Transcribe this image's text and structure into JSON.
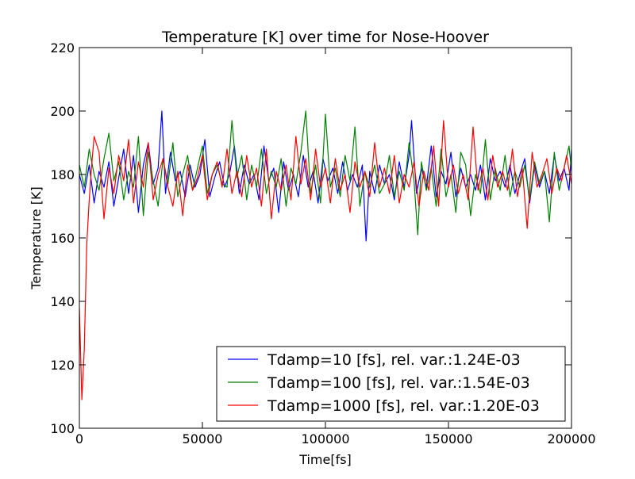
{
  "chart_data": {
    "type": "line",
    "title": "Temperature [K] over time for Nose-Hoover",
    "xlabel": "Time[fs]",
    "ylabel": "Temperature [K]",
    "xlim": [
      0,
      200000
    ],
    "ylim": [
      100,
      220
    ],
    "xticks": [
      0,
      50000,
      100000,
      150000,
      200000
    ],
    "yticks": [
      100,
      120,
      140,
      160,
      180,
      200,
      220
    ],
    "grid": false,
    "legend_position": "lower-right",
    "series": [
      {
        "name": "Tdamp=10 [fs], rel. var.:1.24E-03",
        "color": "#0000ff",
        "x": [
          0,
          2000,
          4000,
          6000,
          8000,
          10000,
          12000,
          14000,
          16000,
          18000,
          20000,
          22000,
          24000,
          26000,
          28000,
          30000,
          32000,
          33500,
          35000,
          37000,
          39000,
          41000,
          43000,
          45000,
          47000,
          49000,
          51000,
          53000,
          55000,
          57000,
          59000,
          61000,
          63000,
          65000,
          67000,
          69000,
          71000,
          73000,
          75000,
          77000,
          79000,
          81000,
          83000,
          85000,
          87000,
          89000,
          91000,
          93000,
          95000,
          97000,
          99000,
          101000,
          103000,
          105000,
          107000,
          109000,
          111000,
          113000,
          115000,
          116500,
          118000,
          120000,
          122000,
          124000,
          126000,
          128000,
          130000,
          132000,
          134000,
          135000,
          137000,
          139000,
          141000,
          143000,
          145000,
          147000,
          149000,
          151000,
          153000,
          155000,
          157000,
          159000,
          161000,
          163000,
          165000,
          167000,
          169000,
          171000,
          173000,
          175000,
          177000,
          179000,
          181000,
          183000,
          185000,
          187000,
          189000,
          191000,
          193000,
          195000,
          197000,
          199000,
          200000
        ],
        "y": [
          180,
          174,
          183,
          171,
          181,
          176,
          184,
          170,
          179,
          188,
          174,
          186,
          168,
          183,
          190,
          177,
          182,
          200,
          174,
          187,
          178,
          181,
          173,
          183,
          176,
          180,
          191,
          173,
          179,
          184,
          176,
          180,
          189,
          174,
          183,
          177,
          180,
          172,
          189,
          178,
          182,
          168,
          184,
          175,
          180,
          173,
          186,
          176,
          181,
          171,
          185,
          178,
          182,
          174,
          184,
          175,
          180,
          176,
          183,
          159,
          181,
          174,
          183,
          177,
          180,
          172,
          184,
          176,
          186,
          197,
          174,
          182,
          176,
          189,
          173,
          181,
          177,
          187,
          173,
          182,
          176,
          180,
          175,
          183,
          172,
          185,
          178,
          181,
          176,
          183,
          174,
          180,
          185,
          171,
          183,
          176,
          181,
          174,
          186,
          178,
          182,
          175,
          188
        ]
      },
      {
        "name": "Tdamp=100 [fs], rel. var.:1.54E-03",
        "color": "#008000",
        "x": [
          0,
          2000,
          4000,
          6000,
          8000,
          10000,
          12000,
          14000,
          16000,
          18000,
          20000,
          22000,
          24000,
          26000,
          28000,
          30000,
          32000,
          34000,
          36000,
          38000,
          40000,
          42000,
          44000,
          46000,
          48000,
          50000,
          52000,
          54000,
          56000,
          58000,
          60000,
          62000,
          64000,
          66000,
          68000,
          70000,
          72000,
          74000,
          76000,
          78000,
          80000,
          82000,
          84000,
          86000,
          88000,
          90000,
          92000,
          94000,
          96000,
          98000,
          100000,
          102000,
          104000,
          106000,
          108000,
          110000,
          112000,
          114000,
          116000,
          118000,
          120000,
          122000,
          124000,
          126000,
          128000,
          130000,
          132000,
          134000,
          136000,
          137500,
          139000,
          141000,
          143000,
          145000,
          147000,
          149000,
          151000,
          153000,
          155000,
          157000,
          159000,
          161000,
          163000,
          165000,
          167000,
          169000,
          171000,
          173000,
          175000,
          177000,
          179000,
          181000,
          183000,
          185000,
          187000,
          189000,
          191000,
          193000,
          195000,
          197000,
          199000,
          200000
        ],
        "y": [
          183,
          176,
          188,
          180,
          175,
          185,
          193,
          178,
          184,
          172,
          181,
          176,
          192,
          167,
          187,
          178,
          170,
          185,
          177,
          190,
          173,
          180,
          186,
          175,
          182,
          189,
          174,
          180,
          183,
          177,
          176,
          197,
          179,
          186,
          172,
          183,
          176,
          188,
          174,
          181,
          176,
          185,
          170,
          182,
          177,
          187,
          200,
          174,
          183,
          171,
          199,
          176,
          182,
          173,
          186,
          178,
          195,
          170,
          181,
          176,
          183,
          174,
          177,
          186,
          173,
          181,
          175,
          190,
          178,
          161,
          184,
          175,
          182,
          170,
          188,
          173,
          180,
          168,
          187,
          183,
          167,
          180,
          174,
          191,
          172,
          182,
          175,
          186,
          173,
          181,
          176,
          183,
          172,
          184,
          177,
          181,
          165,
          187,
          175,
          182,
          189,
          181
        ]
      },
      {
        "name": "Tdamp=1000 [fs], rel. var.:1.20E-03",
        "color": "#ff0000",
        "x": [
          0,
          1000,
          2000,
          3000,
          4000,
          5000,
          6000,
          8000,
          10000,
          12000,
          14000,
          16000,
          18000,
          20000,
          22000,
          24000,
          26000,
          28000,
          30000,
          32000,
          34000,
          36000,
          38000,
          40000,
          42000,
          44000,
          46000,
          48000,
          50000,
          52000,
          54000,
          56000,
          58000,
          60000,
          62000,
          64000,
          66000,
          68000,
          70000,
          72000,
          74000,
          76000,
          78000,
          80000,
          82000,
          84000,
          86000,
          88000,
          90000,
          92000,
          94000,
          96000,
          98000,
          100000,
          102000,
          104000,
          106000,
          108000,
          110000,
          112000,
          114000,
          116000,
          118000,
          120000,
          122000,
          124000,
          126000,
          128000,
          130000,
          132000,
          134000,
          136000,
          138000,
          140000,
          142000,
          144000,
          146000,
          148000,
          150000,
          152000,
          154000,
          156000,
          158000,
          160000,
          162000,
          164000,
          166000,
          168000,
          170000,
          172000,
          174000,
          176000,
          178000,
          180000,
          182000,
          184000,
          186000,
          188000,
          190000,
          192000,
          194000,
          196000,
          198000,
          200000
        ],
        "y": [
          138,
          109,
          125,
          158,
          172,
          183,
          192,
          187,
          166,
          182,
          174,
          186,
          178,
          191,
          171,
          184,
          176,
          190,
          172,
          180,
          185,
          176,
          170,
          181,
          167,
          183,
          175,
          179,
          186,
          172,
          180,
          184,
          176,
          188,
          174,
          181,
          173,
          186,
          176,
          182,
          170,
          188,
          166,
          181,
          175,
          183,
          172,
          192,
          177,
          185,
          172,
          188,
          176,
          182,
          171,
          185,
          175,
          180,
          168,
          184,
          176,
          181,
          173,
          190,
          176,
          182,
          174,
          186,
          171,
          180,
          176,
          184,
          170,
          181,
          175,
          189,
          170,
          197,
          176,
          183,
          174,
          180,
          172,
          195,
          175,
          182,
          172,
          186,
          176,
          181,
          175,
          188,
          173,
          182,
          163,
          187,
          176,
          180,
          185,
          174,
          182,
          178,
          186,
          177
        ]
      }
    ]
  }
}
